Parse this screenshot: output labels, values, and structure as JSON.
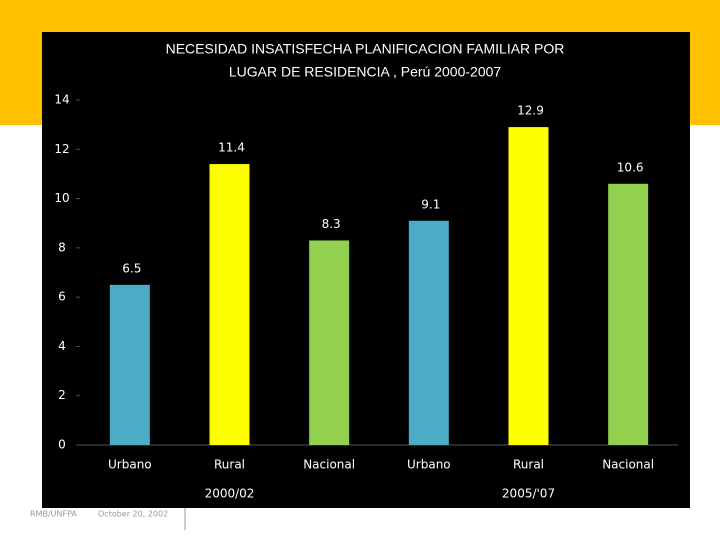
{
  "chart_data": {
    "type": "bar",
    "title": [
      "NECESIDAD INSATISFECHA PLANIFICACION FAMILIAR POR",
      "LUGAR DE RESIDENCIA , Perú 2000-2007"
    ],
    "categories": [
      "Urbano",
      "Rural",
      "Nacional",
      "Urbano",
      "Rural",
      "Nacional"
    ],
    "values": [
      6.5,
      11.4,
      8.3,
      9.1,
      12.9,
      10.6
    ],
    "colors": [
      "#4bacc6",
      "#ffff00",
      "#92d050",
      "#4bacc6",
      "#ffff00",
      "#92d050"
    ],
    "group_labels": [
      "2000/02",
      "2005/'07"
    ],
    "ylim": [
      0,
      14
    ],
    "yticks": [
      0,
      2,
      4,
      6,
      8,
      10,
      12,
      14
    ],
    "grid": false
  },
  "footer": {
    "source": "RMB/UNFPA",
    "date": "October 20, 2002"
  }
}
